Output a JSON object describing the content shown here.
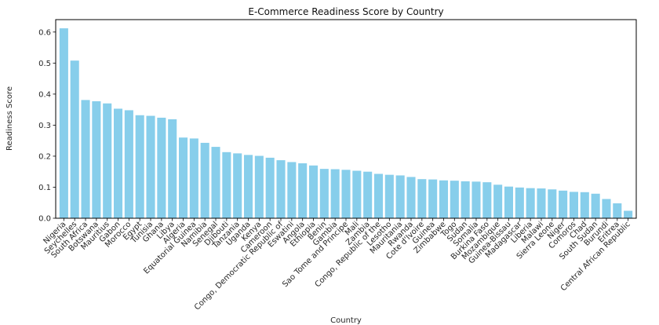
{
  "chart_data": {
    "type": "bar",
    "title": "E-Commerce Readiness Score by Country",
    "xlabel": "Country",
    "ylabel": "Readiness Score",
    "ylim": [
      0,
      0.64
    ],
    "yticks": [
      "0.0",
      "0.1",
      "0.2",
      "0.3",
      "0.4",
      "0.5",
      "0.6"
    ],
    "grid": false,
    "bar_color": "#87CEEB",
    "categories": [
      "Nigeria",
      "Seychelles",
      "South Africa",
      "Botswana",
      "Mauritius",
      "Gabon",
      "Morocco",
      "Egypt",
      "Tunisia",
      "Ghana",
      "Libya",
      "Algeria",
      "Equatorial Guinea",
      "Namibia",
      "Senegal",
      "Djibouti",
      "Tanzania",
      "Uganda",
      "Kenya",
      "Cameroon",
      "Congo, Democratic Republic of",
      "Eswatini",
      "Angola",
      "Ethiopia",
      "Benin",
      "Gambia",
      "Sao Tome and Principe",
      "Mali",
      "Zambia",
      "Congo, Republic of the",
      "Lesotho",
      "Mauritania",
      "Rwanda",
      "Cote d'Ivoire",
      "Guinea",
      "Zimbabwe",
      "Togo",
      "Sudan",
      "Somalia",
      "Burkina Faso",
      "Mozambique",
      "Guinea-Bissau",
      "Madagascar",
      "Liberia",
      "Malawi",
      "Sierra Leone",
      "Niger",
      "Comoros",
      "Chad",
      "South Sudan",
      "Burundi",
      "Eritrea",
      "Central African Republic"
    ],
    "values": [
      0.612,
      0.508,
      0.381,
      0.377,
      0.37,
      0.353,
      0.348,
      0.332,
      0.33,
      0.324,
      0.319,
      0.26,
      0.257,
      0.243,
      0.23,
      0.213,
      0.209,
      0.204,
      0.201,
      0.195,
      0.187,
      0.181,
      0.177,
      0.17,
      0.159,
      0.158,
      0.156,
      0.153,
      0.15,
      0.143,
      0.14,
      0.138,
      0.133,
      0.126,
      0.125,
      0.122,
      0.121,
      0.119,
      0.118,
      0.116,
      0.108,
      0.102,
      0.099,
      0.097,
      0.096,
      0.093,
      0.089,
      0.085,
      0.084,
      0.079,
      0.062,
      0.048,
      0.024
    ]
  }
}
